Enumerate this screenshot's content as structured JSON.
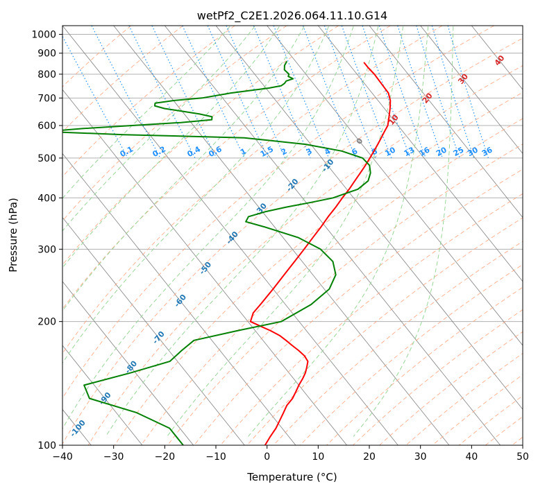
{
  "chart_data": {
    "type": "line",
    "title": "wetPf2_C2E1.2026.064.11.10.G14",
    "xlabel": "Temperature (°C)",
    "ylabel": "Pressure (hPa)",
    "xlim": [
      -40,
      50
    ],
    "ylim": [
      1050,
      100
    ],
    "y_scale": "log",
    "grid": true,
    "x_ticks": [
      -40,
      -30,
      -20,
      -10,
      0,
      10,
      20,
      30,
      40,
      50
    ],
    "y_ticks": [
      100,
      200,
      300,
      400,
      500,
      600,
      700,
      800,
      900,
      1000
    ],
    "colors": {
      "temperature": "#ff0000",
      "dewpoint": "#008000",
      "dry_adiabat": "#ffa07a",
      "moist_adiabat": "#98d598",
      "mixing_ratio": "#1e90ff",
      "isotherm": "#808080",
      "isotherm_label": "#1f77b4",
      "isotherm_label_warm": "#d62728",
      "isotherm_label_zero": "#808080"
    },
    "series": [
      {
        "key": "temperature",
        "pressure": [
          855,
          830,
          800,
          760,
          720,
          690,
          660,
          630,
          600,
          580,
          560,
          540,
          520,
          500,
          480,
          460,
          440,
          420,
          400,
          380,
          360,
          340,
          320,
          300,
          280,
          260,
          240,
          220,
          210,
          200,
          195,
          190,
          185,
          180,
          175,
          170,
          165,
          160,
          155,
          150,
          145,
          140,
          135,
          130,
          125,
          120,
          115,
          110,
          105,
          100
        ],
        "temperature": [
          13.2,
          13.2,
          13.4,
          13.3,
          13.2,
          12.4,
          11.1,
          9.6,
          8.0,
          6.4,
          4.8,
          3.1,
          1.3,
          -0.6,
          -2.6,
          -4.8,
          -7.1,
          -9.5,
          -12.2,
          -14.9,
          -17.9,
          -20.9,
          -24.2,
          -27.7,
          -31.5,
          -35.6,
          -40.0,
          -44.9,
          -47.6,
          -49.5,
          -48.3,
          -47.0,
          -46.0,
          -45.5,
          -45.1,
          -44.6,
          -44.3,
          -44.5,
          -45.6,
          -46.8,
          -48.3,
          -50.0,
          -51.6,
          -53.3,
          -55.5,
          -57.3,
          -59.2,
          -61.2,
          -63.6,
          -66.0
        ]
      },
      {
        "key": "dewpoint",
        "pressure": [
          860,
          840,
          820,
          800,
          790,
          780,
          770,
          760,
          750,
          740,
          720,
          700,
          690,
          680,
          670,
          660,
          650,
          640,
          630,
          620,
          610,
          600,
          590,
          580,
          570,
          560,
          540,
          520,
          500,
          480,
          460,
          440,
          420,
          400,
          390,
          380,
          370,
          360,
          350,
          340,
          320,
          300,
          280,
          260,
          240,
          220,
          200,
          190,
          180,
          170,
          160,
          150,
          140,
          130,
          120,
          110,
          100
        ],
        "dewpoint": [
          -1.7,
          -2.8,
          -3.5,
          -3.3,
          -3.8,
          -3.2,
          -4.9,
          -5.6,
          -6.6,
          -9.4,
          -17.6,
          -24.0,
          -30.0,
          -34.0,
          -34.5,
          -33.0,
          -30.0,
          -27.0,
          -25.0,
          -25.5,
          -32.0,
          -42.0,
          -52.0,
          -60.0,
          -45.0,
          -22.0,
          -11.0,
          -5.0,
          -2.0,
          -1.8,
          -2.8,
          -4.5,
          -7.8,
          -14.0,
          -19.0,
          -24.5,
          -29.5,
          -33.5,
          -34.8,
          -32.0,
          -27.0,
          -24.5,
          -24.0,
          -25.5,
          -29.0,
          -35.0,
          -43.5,
          -53.5,
          -63.5,
          -67.5,
          -71.5,
          -81.0,
          -92.0,
          -93.0,
          -86.0,
          -82.0,
          -82.0
        ]
      }
    ],
    "dry_adiabat_theta_c": [
      -30,
      -20,
      -10,
      0,
      10,
      20,
      30,
      40,
      50,
      60,
      70,
      80,
      90,
      100,
      110,
      120,
      130,
      140,
      150,
      160,
      170,
      180,
      190,
      200,
      210,
      220,
      230,
      240,
      250
    ],
    "moist_adiabat_theta_c": [
      -10,
      -5,
      0,
      5,
      10,
      15,
      20,
      25,
      30,
      35
    ],
    "mixing_ratio_labels": [
      "0.1",
      "0.2",
      "0.4",
      "0.6",
      "1",
      "1.5",
      "2",
      "3",
      "4",
      "6",
      "8",
      "10",
      "13",
      "16",
      "20",
      "25",
      "30",
      "36"
    ],
    "isotherm_labels": [
      "-100",
      "-90",
      "-80",
      "-70",
      "-60",
      "-50",
      "-40",
      "-30",
      "-20",
      "-10",
      "0",
      "10",
      "20",
      "30",
      "40"
    ]
  }
}
